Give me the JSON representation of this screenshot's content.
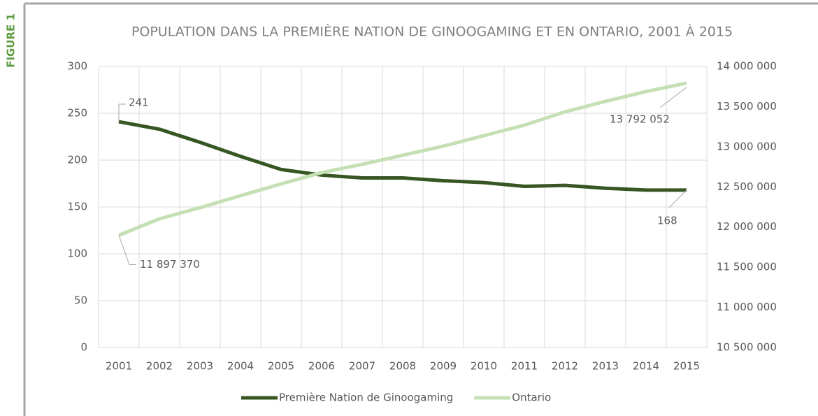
{
  "figure_label": "FIGURE 1",
  "chart_data": {
    "type": "line",
    "title": "POPULATION DANS LA PREMIÈRE NATION DE GINOOGAMING ET EN ONTARIO, 2001 À 2015",
    "categories": [
      "2001",
      "2002",
      "2003",
      "2004",
      "2005",
      "2006",
      "2007",
      "2008",
      "2009",
      "2010",
      "2011",
      "2012",
      "2013",
      "2014",
      "2015"
    ],
    "series": [
      {
        "name": "Première Nation de Ginoogaming",
        "color": "#375623",
        "values": [
          241,
          233,
          219,
          204,
          190,
          184,
          181,
          181,
          178,
          176,
          172,
          173,
          170,
          168,
          168
        ],
        "value_labels": [
          "241",
          null,
          null,
          null,
          null,
          null,
          null,
          null,
          null,
          null,
          null,
          null,
          null,
          null,
          "168"
        ]
      },
      {
        "name": "Ontario",
        "color": "#c5e0b4",
        "axis": "y2",
        "values": [
          11897370,
          12102000,
          12241000,
          12390000,
          12537000,
          12677000,
          12781000,
          12894000,
          13007000,
          13138000,
          13268000,
          13434000,
          13565000,
          13687000,
          13792052
        ],
        "value_labels": [
          "11 897 370",
          null,
          null,
          null,
          null,
          null,
          null,
          null,
          null,
          null,
          null,
          null,
          null,
          null,
          "13 792 052"
        ]
      }
    ],
    "ylim": [
      0,
      300
    ],
    "yticks": [
      0,
      50,
      100,
      150,
      200,
      250,
      300
    ],
    "y2lim": [
      10500000,
      14000000
    ],
    "y2ticks": [
      {
        "value": 10500000,
        "label": "10 500 000"
      },
      {
        "value": 11000000,
        "label": "11 000 000"
      },
      {
        "value": 11500000,
        "label": "11 500 000"
      },
      {
        "value": 12000000,
        "label": "12 000 000"
      },
      {
        "value": 12500000,
        "label": "12 500 000"
      },
      {
        "value": 13000000,
        "label": "13 000 000"
      },
      {
        "value": 13500000,
        "label": "13 500 000"
      },
      {
        "value": 14000000,
        "label": "14 000 000"
      }
    ],
    "grid": true,
    "legend": "bottom"
  }
}
